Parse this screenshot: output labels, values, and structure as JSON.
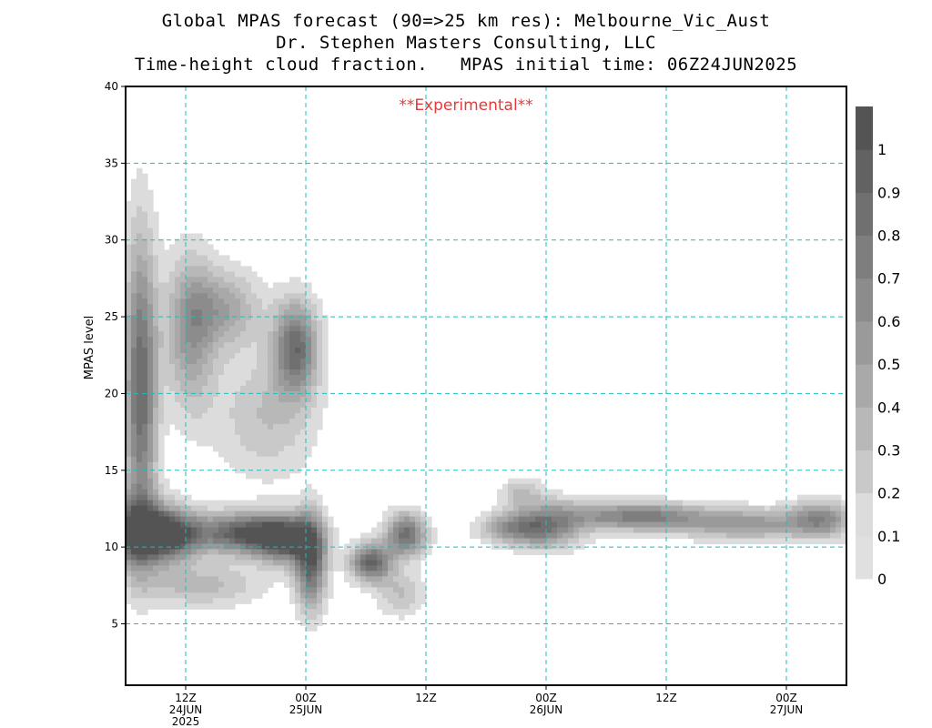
{
  "title": {
    "line1": "Global MPAS forecast (90=>25 km res): Melbourne_Vic_Aust",
    "line2": "Dr. Stephen Masters Consulting, LLC",
    "line3": "Time-height cloud fraction.   MPAS initial time: 06Z24JUN2025"
  },
  "annotation": "**Experimental**",
  "colors": {
    "grid": "#22bbbb",
    "annotation": "#e03c3c",
    "levels": [
      "#dcdcdc",
      "#c9c9c9",
      "#b8b8b8",
      "#a9a9a9",
      "#9a9a9a",
      "#8c8c8c",
      "#7e7e7e",
      "#707070",
      "#626262",
      "#545454",
      "#a8a8a8"
    ]
  },
  "chart_data": {
    "type": "heatmap",
    "ylabel": "MPAS level",
    "xlabel": "",
    "ylim": [
      1,
      40
    ],
    "xlim_hours": [
      6,
      78
    ],
    "grid": true,
    "y_ticks": [
      5,
      10,
      15,
      20,
      25,
      30,
      35,
      40
    ],
    "y_tick_labels": [
      "5",
      "10",
      "15",
      "20",
      "25",
      "30",
      "35",
      "40"
    ],
    "x_ticks": [
      {
        "hour": 12,
        "label1": "12Z",
        "label2": "24JUN",
        "label3": "2025"
      },
      {
        "hour": 24,
        "label1": "00Z",
        "label2": "25JUN",
        "label3": ""
      },
      {
        "hour": 36,
        "label1": "12Z",
        "label2": "",
        "label3": ""
      },
      {
        "hour": 48,
        "label1": "00Z",
        "label2": "26JUN",
        "label3": ""
      },
      {
        "hour": 60,
        "label1": "12Z",
        "label2": "",
        "label3": ""
      },
      {
        "hour": 72,
        "label1": "00Z",
        "label2": "27JUN",
        "label3": ""
      }
    ],
    "colorbar": {
      "levels": [
        0,
        0.1,
        0.2,
        0.3,
        0.4,
        0.5,
        0.6,
        0.7,
        0.8,
        0.9,
        1
      ],
      "labels": [
        "0",
        "0.1",
        "0.2",
        "0.3",
        "0.4",
        "0.5",
        "0.6",
        "0.7",
        "0.8",
        "0.9",
        "1"
      ]
    },
    "cloud_blobs": [
      {
        "hour": 7.5,
        "level": 20.5,
        "dh": 1.6,
        "dl": 9.5,
        "amp": 0.9
      },
      {
        "hour": 7.0,
        "level": 11.0,
        "dh": 3.5,
        "dl": 2.2,
        "amp": 0.95
      },
      {
        "hour": 10.5,
        "level": 10.8,
        "dh": 3.0,
        "dl": 1.5,
        "amp": 1.0
      },
      {
        "hour": 12.5,
        "level": 24.0,
        "dh": 2.5,
        "dl": 5.0,
        "amp": 0.55
      },
      {
        "hour": 16.0,
        "level": 25.5,
        "dh": 3.5,
        "dl": 2.5,
        "amp": 0.45
      },
      {
        "hour": 17.5,
        "level": 10.9,
        "dh": 4.5,
        "dl": 1.3,
        "amp": 0.95
      },
      {
        "hour": 22.0,
        "level": 10.5,
        "dh": 3.0,
        "dl": 1.5,
        "amp": 1.0
      },
      {
        "hour": 23.0,
        "level": 23.0,
        "dh": 2.2,
        "dl": 3.0,
        "amp": 0.85
      },
      {
        "hour": 24.5,
        "level": 9.0,
        "dh": 1.5,
        "dl": 3.0,
        "amp": 0.9
      },
      {
        "hour": 13.5,
        "level": 7.5,
        "dh": 6.0,
        "dl": 1.4,
        "amp": 0.35
      },
      {
        "hour": 20.0,
        "level": 18.5,
        "dh": 5.0,
        "dl": 4.0,
        "amp": 0.3
      },
      {
        "hour": 30.5,
        "level": 9.0,
        "dh": 2.0,
        "dl": 1.2,
        "amp": 0.95
      },
      {
        "hour": 34.0,
        "level": 10.8,
        "dh": 2.0,
        "dl": 1.4,
        "amp": 0.85
      },
      {
        "hour": 33.5,
        "level": 7.0,
        "dh": 2.5,
        "dl": 1.5,
        "amp": 0.3
      },
      {
        "hour": 45.0,
        "level": 11.2,
        "dh": 3.5,
        "dl": 1.0,
        "amp": 0.6
      },
      {
        "hour": 48.5,
        "level": 11.5,
        "dh": 3.5,
        "dl": 1.6,
        "amp": 0.55
      },
      {
        "hour": 45.5,
        "level": 13.5,
        "dh": 2.0,
        "dl": 1.0,
        "amp": 0.3
      },
      {
        "hour": 57.0,
        "level": 12.0,
        "dh": 6.5,
        "dl": 0.9,
        "amp": 0.75
      },
      {
        "hour": 68.0,
        "level": 11.5,
        "dh": 6.5,
        "dl": 1.0,
        "amp": 0.55
      },
      {
        "hour": 75.5,
        "level": 11.8,
        "dh": 3.0,
        "dl": 1.2,
        "amp": 0.6
      }
    ]
  }
}
